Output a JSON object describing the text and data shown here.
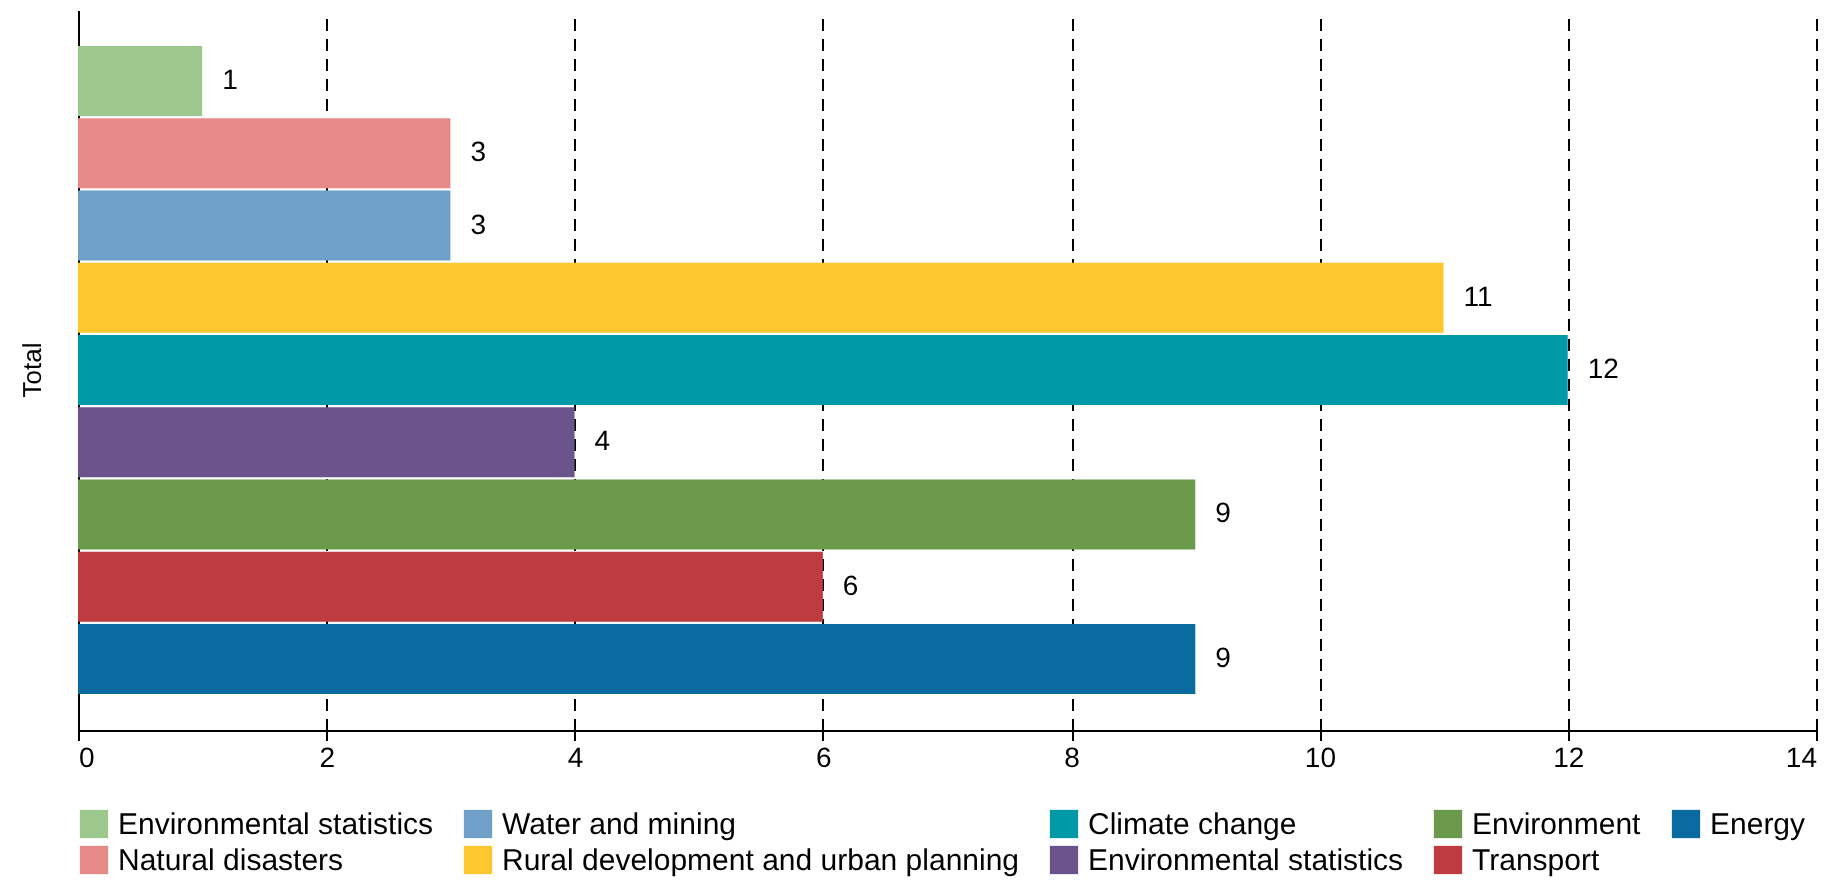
{
  "chart_data": {
    "type": "bar",
    "orientation": "horizontal",
    "categories": [
      "Total"
    ],
    "series": [
      {
        "name": "Environmental statistics",
        "color": "#9dc88d",
        "values": [
          1
        ]
      },
      {
        "name": "Natural disasters",
        "color": "#e68a88",
        "values": [
          3
        ]
      },
      {
        "name": "Water and mining",
        "color": "#6fa0c9",
        "values": [
          3
        ]
      },
      {
        "name": "Rural development and urban planning",
        "color": "#fdc82f",
        "values": [
          11
        ]
      },
      {
        "name": "Climate change",
        "color": "#0099a8",
        "values": [
          12
        ]
      },
      {
        "name": "Environmental statistics",
        "color": "#6b548c",
        "values": [
          4
        ]
      },
      {
        "name": "Environment",
        "color": "#6a9a4a",
        "values": [
          9
        ]
      },
      {
        "name": "Transport",
        "color": "#be3c3f",
        "values": [
          6
        ]
      },
      {
        "name": "Energy",
        "color": "#0a6ba0",
        "values": [
          9
        ]
      }
    ],
    "xlim": [
      0,
      14
    ],
    "xticks": [
      0,
      2,
      4,
      6,
      8,
      10,
      12,
      14
    ],
    "grid": "x",
    "line_style": "dashed",
    "data_labels": true,
    "legend": "bottom"
  }
}
